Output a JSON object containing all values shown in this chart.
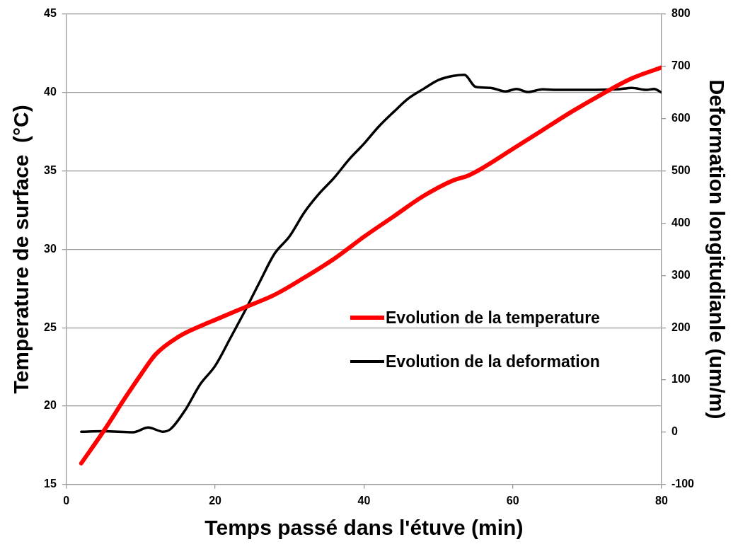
{
  "chart_data": {
    "type": "line",
    "xlabel": "Temps passé dans l'étuve (min)",
    "ylabel": "Temperature de surface  (°C)",
    "y2label": "Deformation longitudianle (um/m)",
    "xlim": [
      0,
      80
    ],
    "xticks": [
      0,
      20,
      40,
      60,
      80
    ],
    "ylim": [
      15,
      45
    ],
    "yticks": [
      15,
      20,
      25,
      30,
      35,
      40,
      45
    ],
    "y2lim": [
      -100,
      800
    ],
    "y2ticks": [
      -100,
      0,
      100,
      200,
      300,
      400,
      500,
      600,
      700,
      800
    ],
    "grid": "y",
    "legend": "right",
    "marker": "none",
    "line_style": "solid",
    "series": [
      {
        "name": "Evolution de la temperature",
        "color": "#ff0000",
        "x": [
          2,
          5,
          8,
          10,
          12,
          15,
          18,
          20,
          24,
          28,
          32,
          36,
          40,
          44,
          48,
          52,
          54,
          56,
          60,
          64,
          68,
          72,
          76,
          80
        ],
        "values": [
          16.35,
          18.4,
          20.6,
          22.0,
          23.3,
          24.4,
          25.1,
          25.5,
          26.3,
          27.1,
          28.2,
          29.4,
          30.8,
          32.1,
          33.4,
          34.4,
          34.7,
          35.2,
          36.4,
          37.6,
          38.8,
          39.9,
          40.9,
          41.6
        ]
      },
      {
        "name": "Evolution de la deformation",
        "color": "#000000",
        "axis": "y2",
        "x": [
          2,
          5,
          9,
          11,
          13,
          14,
          16,
          18,
          20,
          22,
          24,
          26,
          28,
          30,
          32,
          34,
          36,
          38,
          40,
          42,
          44,
          46,
          48,
          50,
          52,
          53.5,
          55,
          57,
          59,
          60.5,
          62,
          64,
          66,
          70,
          74,
          76,
          78,
          79,
          80
        ],
        "values": [
          1,
          2,
          0,
          9,
          1,
          6,
          43,
          92,
          127,
          179,
          232,
          288,
          342,
          375,
          421,
          457,
          487,
          522,
          552,
          585,
          613,
          639,
          657,
          674,
          682,
          684,
          661,
          659,
          652,
          657,
          651,
          656,
          655,
          655,
          656,
          659,
          655,
          657,
          650
        ]
      }
    ]
  }
}
